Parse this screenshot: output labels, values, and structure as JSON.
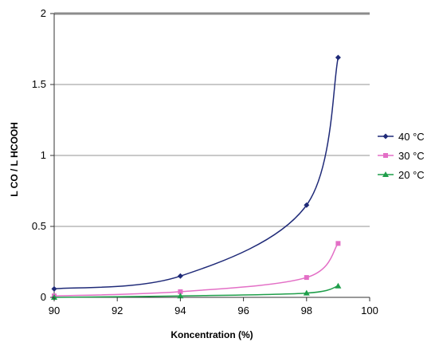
{
  "chart_data": {
    "type": "line",
    "title": "",
    "xlabel": "Koncentration (%)",
    "ylabel": "L CO / L HCOOH",
    "xlim": [
      90,
      100
    ],
    "ylim": [
      0,
      2
    ],
    "xticks": [
      90,
      92,
      94,
      96,
      98,
      100
    ],
    "yticks": [
      0,
      0.5,
      1,
      1.5,
      2
    ],
    "x_tick_labels": [
      "90",
      "92",
      "94",
      "96",
      "98",
      "100"
    ],
    "y_tick_labels": [
      "0",
      "0.5",
      "1",
      "1.5",
      "2"
    ],
    "grid": "horizontal",
    "legend_position": "right",
    "series": [
      {
        "name": "40 °C",
        "color": "#1f2a78",
        "marker": "diamond",
        "x": [
          90,
          94,
          98,
          99
        ],
        "y": [
          0.06,
          0.15,
          0.65,
          1.69
        ]
      },
      {
        "name": "30 °C",
        "color": "#e36fc6",
        "marker": "square",
        "x": [
          90,
          94,
          98,
          99
        ],
        "y": [
          0.01,
          0.04,
          0.14,
          0.38
        ]
      },
      {
        "name": "20 °C",
        "color": "#1f9e4a",
        "marker": "triangle",
        "x": [
          90,
          94,
          98,
          99
        ],
        "y": [
          0.0,
          0.01,
          0.03,
          0.08
        ]
      }
    ]
  }
}
